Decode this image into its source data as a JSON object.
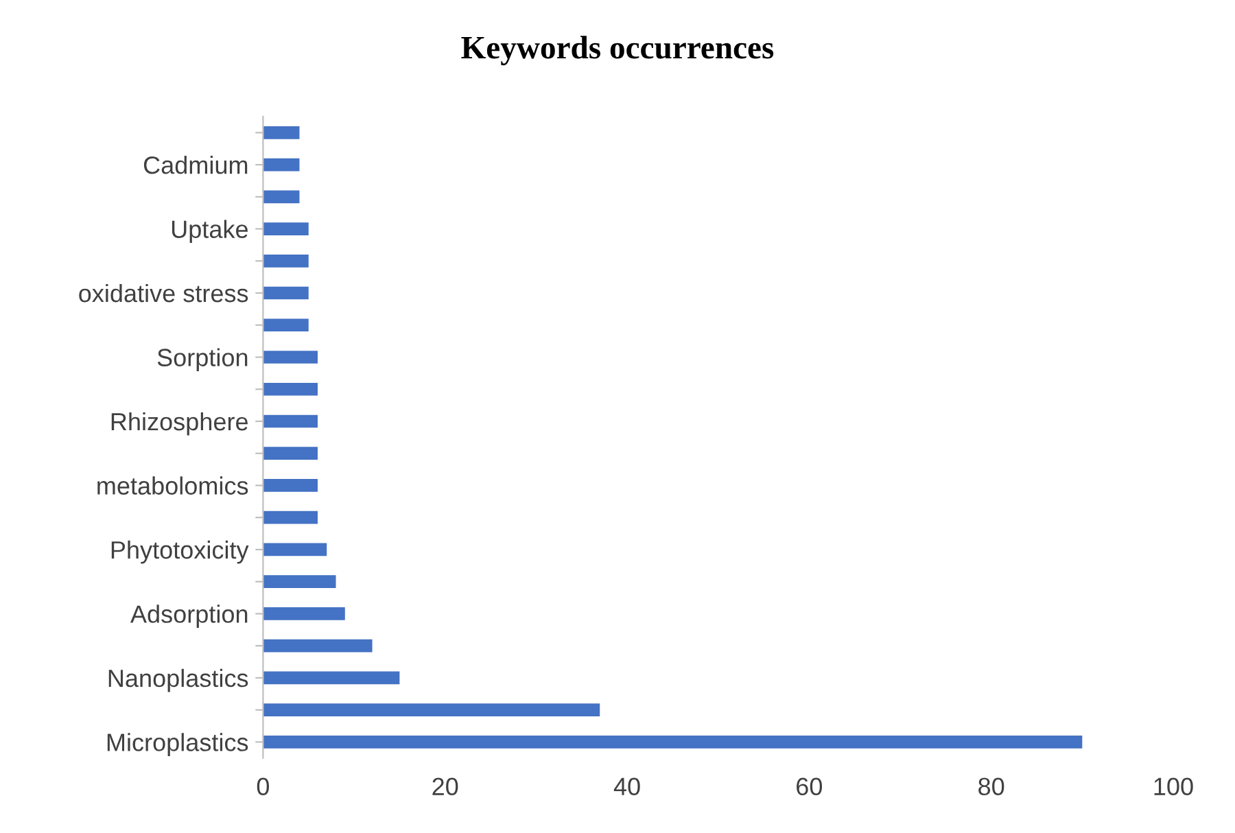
{
  "chart_data": {
    "type": "bar",
    "orientation": "horizontal",
    "title": "Keywords occurrences",
    "categories": [
      null,
      "Cadmium",
      null,
      "Uptake",
      null,
      "oxidative stress",
      null,
      "Sorption",
      null,
      "Rhizosphere",
      null,
      "metabolomics",
      null,
      "Phytotoxicity",
      null,
      "Adsorption",
      null,
      "Nanoplastics",
      null,
      "Microplastics"
    ],
    "values": [
      4,
      4,
      4,
      5,
      5,
      5,
      5,
      6,
      6,
      6,
      6,
      6,
      6,
      7,
      8,
      9,
      12,
      15,
      37,
      90
    ],
    "color": "#4472c4",
    "xlim": [
      0,
      100
    ],
    "xticks": [
      0,
      20,
      40,
      60,
      80,
      100
    ],
    "grid": false,
    "legend": false
  }
}
